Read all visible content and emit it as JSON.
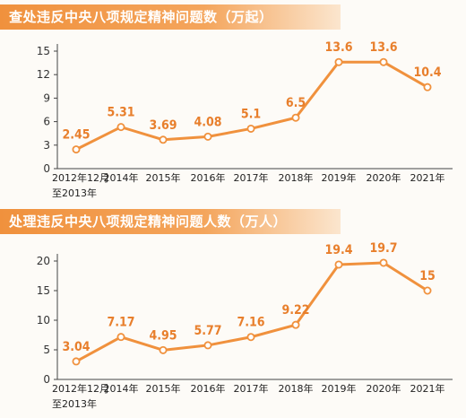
{
  "chart_data": [
    {
      "type": "line",
      "title": "查处违反中央八项规定精神问题数（万起）",
      "categories": [
        "2012年12月\n至2013年",
        "2014年",
        "2015年",
        "2016年",
        "2017年",
        "2018年",
        "2019年",
        "2020年",
        "2021年"
      ],
      "values": [
        2.45,
        5.31,
        3.69,
        4.08,
        5.1,
        6.5,
        13.6,
        13.6,
        10.4
      ],
      "value_labels": [
        "2.45",
        "5.31",
        "3.69",
        "4.08",
        "5.1",
        "6.5",
        "13.6",
        "13.6",
        "10.4"
      ],
      "yticks": [
        "0",
        "3",
        "6",
        "9",
        "12",
        "15"
      ],
      "ylim": [
        0,
        15
      ],
      "xlabel": "",
      "ylabel": "",
      "grid": false,
      "line_color": "#f0913d"
    },
    {
      "type": "line",
      "title": "处理违反中央八项规定精神问题人数（万人）",
      "categories": [
        "2012年12月\n至2013年",
        "2014年",
        "2015年",
        "2016年",
        "2017年",
        "2018年",
        "2019年",
        "2020年",
        "2021年"
      ],
      "values": [
        3.04,
        7.17,
        4.95,
        5.77,
        7.16,
        9.22,
        19.4,
        19.7,
        15
      ],
      "value_labels": [
        "3.04",
        "7.17",
        "4.95",
        "5.77",
        "7.16",
        "9.22",
        "19.4",
        "19.7",
        "15"
      ],
      "yticks": [
        "0",
        "5",
        "10",
        "15",
        "20"
      ],
      "ylim": [
        0,
        20
      ],
      "xlabel": "",
      "ylabel": "",
      "grid": false,
      "line_color": "#f0913d"
    }
  ]
}
